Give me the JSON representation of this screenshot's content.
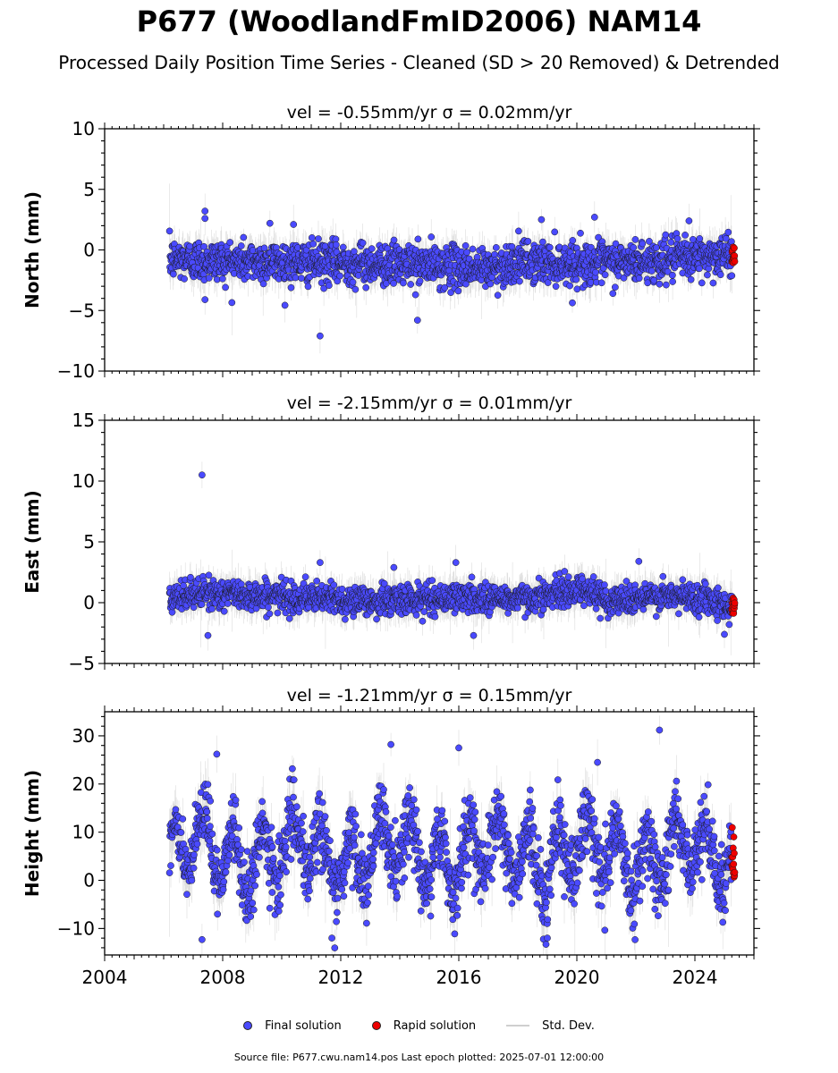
{
  "header": {
    "title": "P677 (WoodlandFmID2006) NAM14",
    "subtitle": "Processed Daily Position Time Series - Cleaned (SD > 20 Removed) & Detrended"
  },
  "legend": {
    "final_label": "Final solution",
    "rapid_label": "Rapid solution",
    "std_label": "Std. Dev."
  },
  "footer": {
    "source": "Source file: P677.cwu.nam14.pos  Last epoch plotted: 2025-07-01 12:00:00"
  },
  "colors": {
    "final": "#4a4aff",
    "rapid": "#ee0000",
    "stddev": "#9a9a9a",
    "edge": "#1a1a1a"
  },
  "chart_data": [
    {
      "type": "scatter",
      "title": "vel = -0.55mm/yr   σ = 0.02mm/yr",
      "ylabel": "North (mm)",
      "xlim": [
        2004.0,
        2026.0
      ],
      "ylim": [
        -10,
        10
      ],
      "yticks": [
        -10,
        -5,
        0,
        5,
        10
      ],
      "xticks": [
        2004,
        2008,
        2012,
        2016,
        2020,
        2024
      ],
      "show_xtick_labels": false,
      "time_range": [
        2006.2,
        2025.25
      ],
      "rapid_range": [
        2025.25,
        2025.5
      ],
      "series": [
        {
          "name": "Final solution",
          "daily_points_approx": 6900,
          "trend_profile": {
            "x": [
              2006.2,
              2008,
              2010,
              2012,
              2014,
              2016,
              2017,
              2018,
              2020,
              2022,
              2024,
              2025.25
            ],
            "y": [
              -0.8,
              -0.9,
              -1.0,
              -1.1,
              -1.2,
              -1.4,
              -1.6,
              -1.0,
              -1.1,
              -1.0,
              -0.6,
              -0.4
            ]
          },
          "scatter_sd": 0.85,
          "std_dev": 1.2,
          "notable_points": [
            {
              "x": 2007.4,
              "y": 3.2
            },
            {
              "x": 2007.4,
              "y": 2.6
            },
            {
              "x": 2007.4,
              "y": -4.1
            },
            {
              "x": 2009.6,
              "y": 2.2
            },
            {
              "x": 2010.4,
              "y": 2.1
            },
            {
              "x": 2011.3,
              "y": -7.1
            },
            {
              "x": 2014.6,
              "y": -5.8
            },
            {
              "x": 2018.8,
              "y": 2.5
            },
            {
              "x": 2020.6,
              "y": 2.7
            },
            {
              "x": 2023.8,
              "y": 2.4
            }
          ]
        },
        {
          "name": "Rapid solution",
          "values_range": [
            -1.2,
            0.3
          ]
        }
      ]
    },
    {
      "type": "scatter",
      "title": "vel = -2.15mm/yr   σ = 0.01mm/yr",
      "ylabel": "East (mm)",
      "xlim": [
        2004.0,
        2026.0
      ],
      "ylim": [
        -5,
        15
      ],
      "yticks": [
        -5,
        0,
        5,
        10,
        15
      ],
      "xticks": [
        2004,
        2008,
        2012,
        2016,
        2020,
        2024
      ],
      "show_xtick_labels": false,
      "time_range": [
        2006.2,
        2025.25
      ],
      "rapid_range": [
        2025.25,
        2025.5
      ],
      "series": [
        {
          "name": "Final solution",
          "daily_points_approx": 6900,
          "trend_profile": {
            "x": [
              2006.2,
              2007,
              2010,
              2013,
              2016,
              2018,
              2019.5,
              2020.2,
              2021,
              2023,
              2024.5,
              2025.25
            ],
            "y": [
              0.0,
              0.8,
              0.5,
              0.1,
              0.4,
              0.3,
              0.8,
              1.2,
              0.2,
              0.5,
              0.4,
              -0.5
            ]
          },
          "scatter_sd": 0.6,
          "std_dev": 1.1,
          "notable_points": [
            {
              "x": 2007.3,
              "y": 10.5
            },
            {
              "x": 2011.3,
              "y": 3.3
            },
            {
              "x": 2013.8,
              "y": 2.9
            },
            {
              "x": 2015.9,
              "y": 3.3
            },
            {
              "x": 2022.1,
              "y": 3.4
            },
            {
              "x": 2007.5,
              "y": -2.7
            },
            {
              "x": 2016.5,
              "y": -2.7
            },
            {
              "x": 2025.0,
              "y": -2.6
            }
          ]
        },
        {
          "name": "Rapid solution",
          "values_range": [
            -0.9,
            0.6
          ]
        }
      ]
    },
    {
      "type": "scatter",
      "title": "vel = -1.21mm/yr   σ = 0.15mm/yr",
      "ylabel": "Height (mm)",
      "xlim": [
        2004.0,
        2026.0
      ],
      "ylim": [
        -15.5,
        35
      ],
      "yticks": [
        -10,
        0,
        10,
        20,
        30
      ],
      "xticks": [
        2004,
        2008,
        2012,
        2016,
        2020,
        2024
      ],
      "xticklabels": [
        "2004",
        "2008",
        "2012",
        "2016",
        "2020",
        "2024"
      ],
      "show_xtick_labels": true,
      "time_range": [
        2006.2,
        2025.25
      ],
      "rapid_range": [
        2025.25,
        2025.5
      ],
      "series": [
        {
          "name": "Final solution",
          "daily_points_approx": 6900,
          "mean": 5.5,
          "seasonal_amplitude": 6.0,
          "scatter_sd": 3.5,
          "std_dev": 4.0,
          "notable_points": [
            {
              "x": 2007.8,
              "y": 26.2
            },
            {
              "x": 2013.7,
              "y": 28.2
            },
            {
              "x": 2016.0,
              "y": 27.5
            },
            {
              "x": 2022.8,
              "y": 31.2
            },
            {
              "x": 2020.7,
              "y": 24.5
            },
            {
              "x": 2007.3,
              "y": -12.3
            },
            {
              "x": 2011.7,
              "y": -12.0
            },
            {
              "x": 2019.0,
              "y": -12.0
            }
          ]
        },
        {
          "name": "Rapid solution",
          "values_range": [
            0.5,
            11.0
          ]
        }
      ]
    }
  ]
}
